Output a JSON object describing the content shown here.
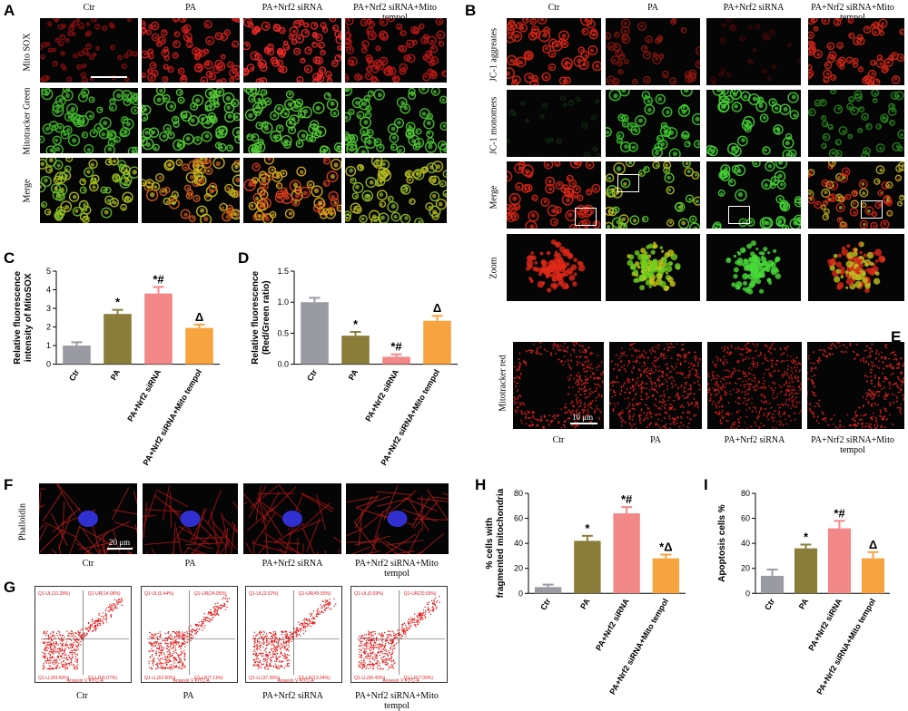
{
  "panels": {
    "A": "A",
    "B": "B",
    "C": "C",
    "D": "D",
    "E": "E",
    "F": "F",
    "G": "G",
    "H": "H",
    "I": "I"
  },
  "groups": [
    "Ctr",
    "PA",
    "PA+Nrf2 siRNA",
    "PA+Nrf2 siRNA+Mito tempol"
  ],
  "colors": {
    "Ctr": "#9a9aa2",
    "PA": "#8a7d3a",
    "PA+Nrf2 siRNA": "#f38888",
    "PA+Nrf2 siRNA+Mito tempol": "#f7a340"
  },
  "panel_A": {
    "rows": [
      "Mito SOX",
      "Mitotracker Green",
      "Merge"
    ]
  },
  "panel_B": {
    "rows": [
      "JC-1 aggreates",
      "JC-1 monomers",
      "Merge",
      "Zoom"
    ]
  },
  "panel_E": {
    "row": "Mitotracker red",
    "scale": "10 μm"
  },
  "panel_F": {
    "row": "Phalloidin",
    "scale": "20 μm"
  },
  "panel_G": {
    "xaxis": "Annexin V FITC-A",
    "yaxis": "PI PCS-A",
    "quadrants": [
      {
        "ul": "Q1-UL(10.28%)",
        "ur": "Q1-UR(14.08%)",
        "ll": "Q1-LL(69.59%)",
        "lr": "Q1-LR(6.07%)"
      },
      {
        "ul": "Q1-UL(5.44%)",
        "ur": "Q1-UR(24.95%)",
        "ll": "Q1-LL(62.50%)",
        "lr": "Q1-LR(7.11%)"
      },
      {
        "ul": "Q1-UL(3.52%)",
        "ur": "Q1-UR(45.55%)",
        "ll": "Q1-LL(37.39%)",
        "lr": "Q1-LR(13.54%)"
      },
      {
        "ul": "Q1-UL(5.69%)",
        "ur": "Q1-UR(20.59%)",
        "ll": "Q1-LL(66.43%)",
        "lr": "Q1-LR(7.09%)"
      }
    ]
  },
  "chart_data": [
    {
      "id": "C",
      "type": "bar",
      "ylabel": "Relative fluorescence intensity of MitoSOX",
      "ylabel_lines": [
        "Relative fluorescence",
        "intensity of MitoSOX"
      ],
      "categories": [
        "Ctr",
        "PA",
        "PA+Nrf2 siRNA",
        "PA+Nrf2 siRNA+Mito tempol"
      ],
      "values": [
        1.0,
        2.7,
        3.8,
        1.95
      ],
      "errors": [
        0.18,
        0.22,
        0.35,
        0.18
      ],
      "marks": [
        "",
        "*",
        "*#",
        "Δ"
      ],
      "ylim": [
        0,
        5
      ],
      "yticks": [
        0,
        1,
        2,
        3,
        4,
        5
      ]
    },
    {
      "id": "D",
      "type": "bar",
      "ylabel": "Relative fluorescence (Red/Green ratio)",
      "ylabel_lines": [
        "Relative fluorescence",
        "(Red/Green ratio)"
      ],
      "categories": [
        "Ctr",
        "PA",
        "PA+Nrf2 siRNA",
        "PA+Nrf2 siRNA+Mito tempol"
      ],
      "values": [
        1.0,
        0.46,
        0.12,
        0.7
      ],
      "errors": [
        0.07,
        0.06,
        0.04,
        0.08
      ],
      "marks": [
        "",
        "*",
        "*#",
        "Δ"
      ],
      "ylim": [
        0,
        1.5
      ],
      "yticks": [
        0.0,
        0.5,
        1.0,
        1.5
      ]
    },
    {
      "id": "H",
      "type": "bar",
      "ylabel": "% cells with fragmented mitochondria",
      "ylabel_lines": [
        "% cells with",
        "fragmented mitochondria"
      ],
      "categories": [
        "Ctr",
        "PA",
        "PA+Nrf2 siRNA",
        "PA+Nrf2 siRNA+Mito tempol"
      ],
      "values": [
        5,
        42,
        64,
        28
      ],
      "errors": [
        2,
        4,
        5,
        3
      ],
      "marks": [
        "",
        "*",
        "*#",
        "*Δ"
      ],
      "ylim": [
        0,
        80
      ],
      "yticks": [
        0,
        20,
        40,
        60,
        80
      ]
    },
    {
      "id": "I",
      "type": "bar",
      "ylabel": "Apoptosis cells %",
      "ylabel_lines": [
        "Apoptosis cells %"
      ],
      "categories": [
        "Ctr",
        "PA",
        "PA+Nrf2 siRNA",
        "PA+Nrf2 siRNA+Mito tempol"
      ],
      "values": [
        14,
        36,
        52,
        28
      ],
      "errors": [
        5,
        3,
        6,
        5
      ],
      "marks": [
        "",
        "*",
        "*#",
        "Δ"
      ],
      "ylim": [
        0,
        80
      ],
      "yticks": [
        0,
        20,
        40,
        60,
        80
      ]
    }
  ]
}
